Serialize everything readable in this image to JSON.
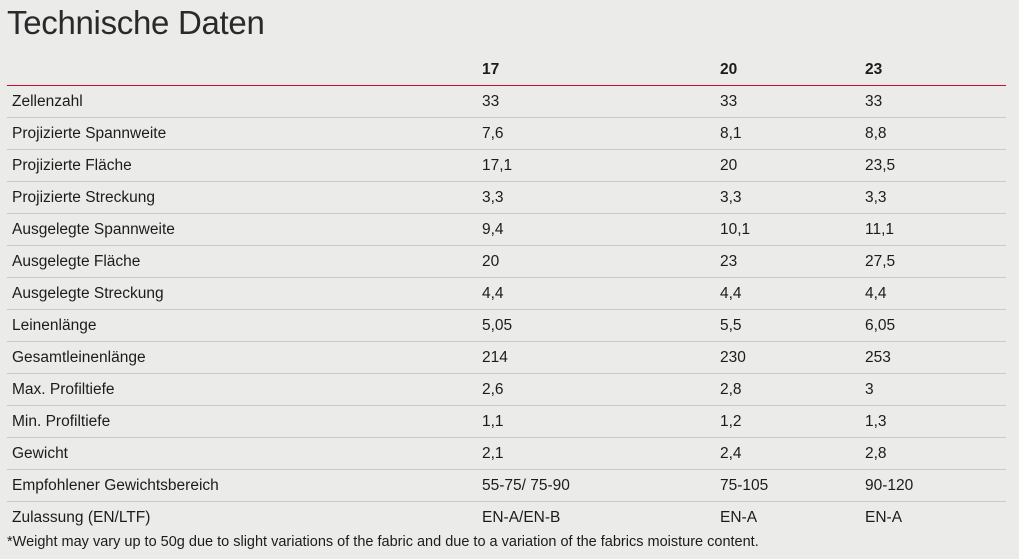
{
  "title": "Technische Daten",
  "table": {
    "headers": [
      "",
      "17",
      "20",
      "23"
    ],
    "rows": [
      {
        "label": "Zellenzahl",
        "values": [
          "33",
          "33",
          "33"
        ]
      },
      {
        "label": "Projizierte Spannweite",
        "values": [
          "7,6",
          "8,1",
          "8,8"
        ]
      },
      {
        "label": "Projizierte Fläche",
        "values": [
          "17,1",
          "20",
          "23,5"
        ]
      },
      {
        "label": "Projizierte Streckung",
        "values": [
          "3,3",
          "3,3",
          "3,3"
        ]
      },
      {
        "label": "Ausgelegte Spannweite",
        "values": [
          "9,4",
          "10,1",
          "11,1"
        ]
      },
      {
        "label": "Ausgelegte Fläche",
        "values": [
          "20",
          "23",
          "27,5"
        ]
      },
      {
        "label": "Ausgelegte Streckung",
        "values": [
          "4,4",
          "4,4",
          "4,4"
        ]
      },
      {
        "label": "Leinenlänge",
        "values": [
          "5,05",
          "5,5",
          "6,05"
        ]
      },
      {
        "label": "Gesamtleinenlänge",
        "values": [
          "214",
          "230",
          "253"
        ]
      },
      {
        "label": "Max. Profiltiefe",
        "values": [
          "2,6",
          "2,8",
          "3"
        ]
      },
      {
        "label": "Min. Profiltiefe",
        "values": [
          "1,1",
          "1,2",
          "1,3"
        ]
      },
      {
        "label": "Gewicht",
        "values": [
          "2,1",
          "2,4",
          "2,8"
        ]
      },
      {
        "label": "Empfohlener Gewichtsbereich",
        "values": [
          "55-75/ 75-90",
          "75-105",
          "90-120"
        ]
      },
      {
        "label": "Zulassung (EN/LTF)",
        "values": [
          "EN-A/EN-B",
          "EN-A",
          "EN-A"
        ]
      }
    ]
  },
  "footnote": "*Weight may vary up to 50g due to slight variations of the fabric and due to a variation of the fabrics moisture content.",
  "colors": {
    "background": "#ebebea",
    "header_rule": "#c8102e",
    "row_rule": "#c9c9c8",
    "text": "#1c1c1c"
  }
}
